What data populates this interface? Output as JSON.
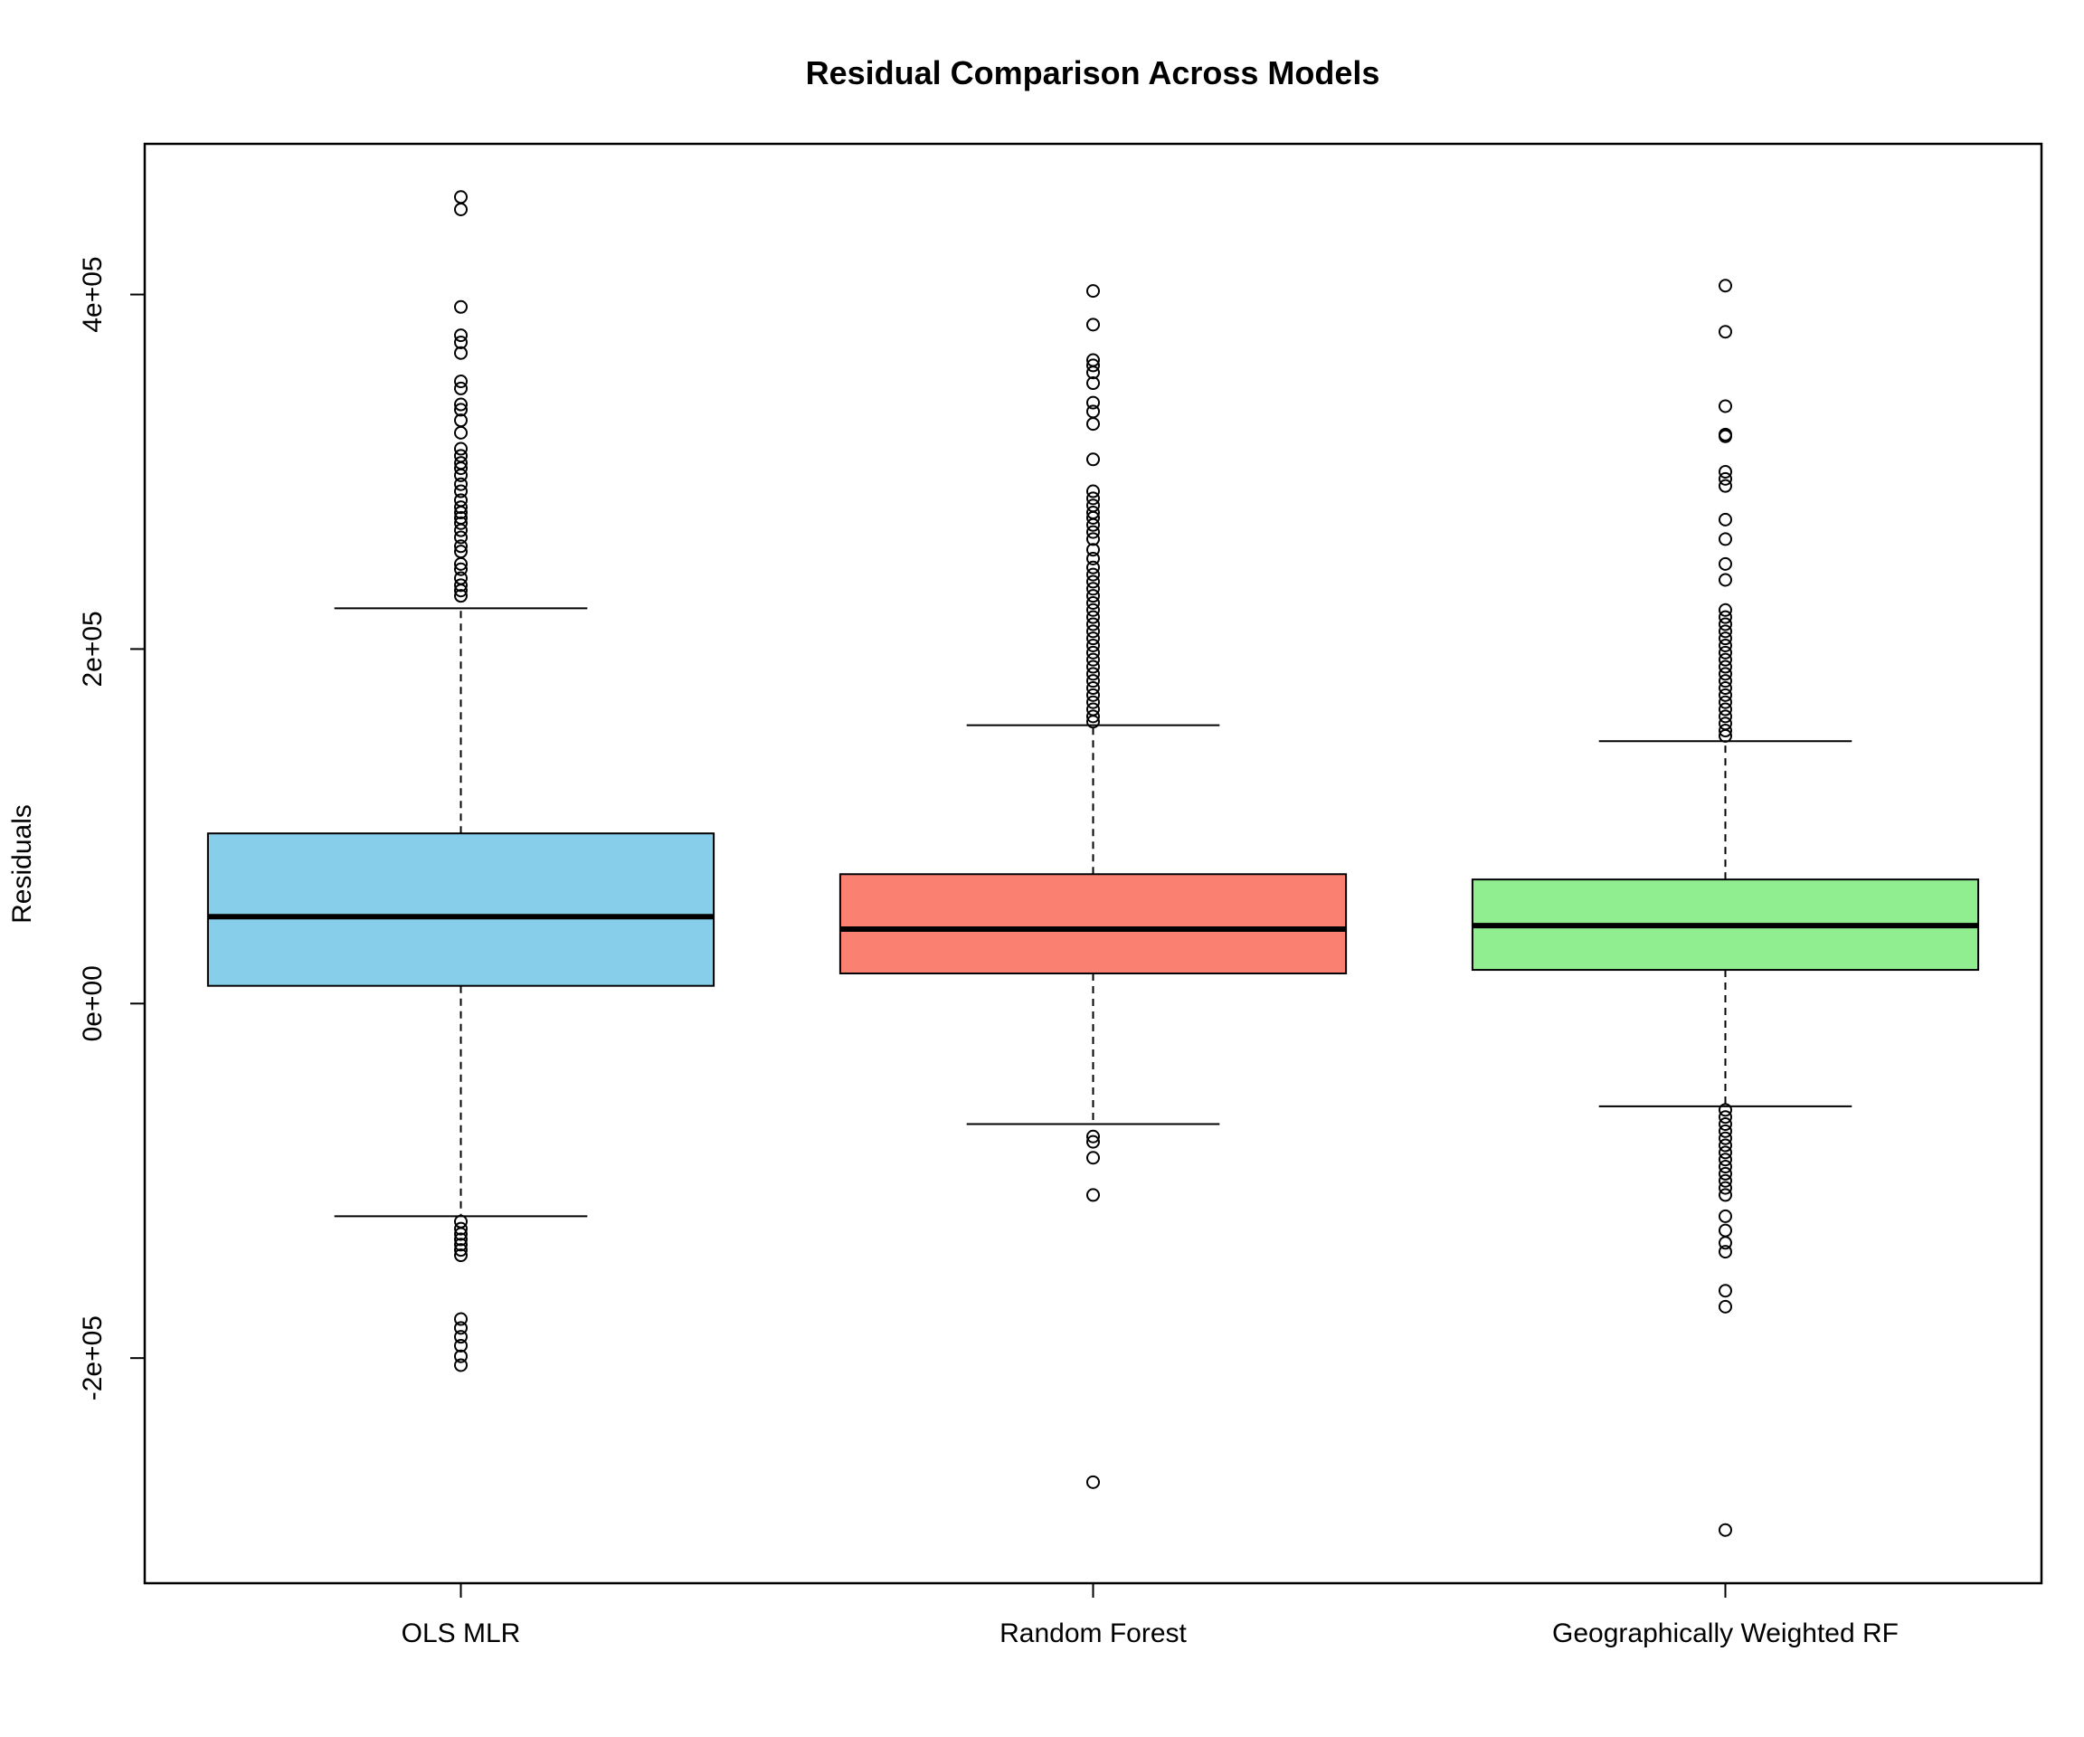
{
  "chart_data": {
    "type": "boxplot",
    "title": "Residual Comparison Across Models",
    "xlabel": "",
    "ylabel": "Residuals",
    "ylim": [
      -327000,
      485000
    ],
    "yticks": [
      {
        "value": -200000,
        "label": "-2e+05"
      },
      {
        "value": 0,
        "label": "0e+00"
      },
      {
        "value": 200000,
        "label": "2e+05"
      },
      {
        "value": 400000,
        "label": "4e+05"
      }
    ],
    "grid": false,
    "legend": "none",
    "categories": [
      "OLS MLR",
      "Random Forest",
      "Geographically Weighted RF"
    ],
    "series": [
      {
        "color": "#87CEEB",
        "q1": 10000,
        "median": 49000,
        "q3": 96000,
        "whisker_low": -120000,
        "whisker_high": 223000,
        "outliers": [
          455000,
          448000,
          393000,
          377000,
          373000,
          367000,
          351000,
          347000,
          338000,
          335000,
          329000,
          322000,
          313000,
          309000,
          305000,
          302000,
          298000,
          293000,
          289000,
          284000,
          280000,
          277000,
          274000,
          271000,
          267000,
          263000,
          258000,
          255000,
          248000,
          245000,
          240000,
          236000,
          233000,
          230000,
          -123000,
          -127000,
          -130000,
          -133000,
          -136000,
          -139000,
          -142000,
          -178000,
          -183000,
          -188000,
          -193000,
          -199000,
          -204000
        ]
      },
      {
        "color": "#FA8072",
        "q1": 17000,
        "median": 42000,
        "q3": 73000,
        "whisker_low": -68000,
        "whisker_high": 157000,
        "outliers": [
          402000,
          383000,
          363000,
          360000,
          356000,
          350000,
          339000,
          334000,
          327000,
          307000,
          289000,
          285000,
          281000,
          277000,
          274000,
          270000,
          266000,
          262000,
          256000,
          251000,
          246000,
          242000,
          238000,
          234000,
          230000,
          226000,
          222000,
          218000,
          214000,
          210000,
          206000,
          202000,
          198000,
          194000,
          190000,
          186000,
          182000,
          178000,
          174000,
          170000,
          166000,
          162000,
          159000,
          -75000,
          -78000,
          -87000,
          -108000,
          -270000
        ]
      },
      {
        "color": "#90EE90",
        "q1": 19000,
        "median": 44000,
        "q3": 70000,
        "whisker_low": -58000,
        "whisker_high": 148000,
        "outliers": [
          405000,
          379000,
          337000,
          321000,
          320000,
          300000,
          296000,
          292000,
          273000,
          262000,
          248000,
          239000,
          222000,
          218000,
          214000,
          210000,
          206000,
          202000,
          198000,
          194000,
          190000,
          186000,
          182000,
          178000,
          174000,
          170000,
          166000,
          162000,
          158000,
          154000,
          151000,
          -60000,
          -64000,
          -68000,
          -72000,
          -76000,
          -80000,
          -84000,
          -88000,
          -92000,
          -96000,
          -100000,
          -104000,
          -108000,
          -120000,
          -128000,
          -135000,
          -140000,
          -162000,
          -171000,
          -297000
        ]
      }
    ]
  }
}
